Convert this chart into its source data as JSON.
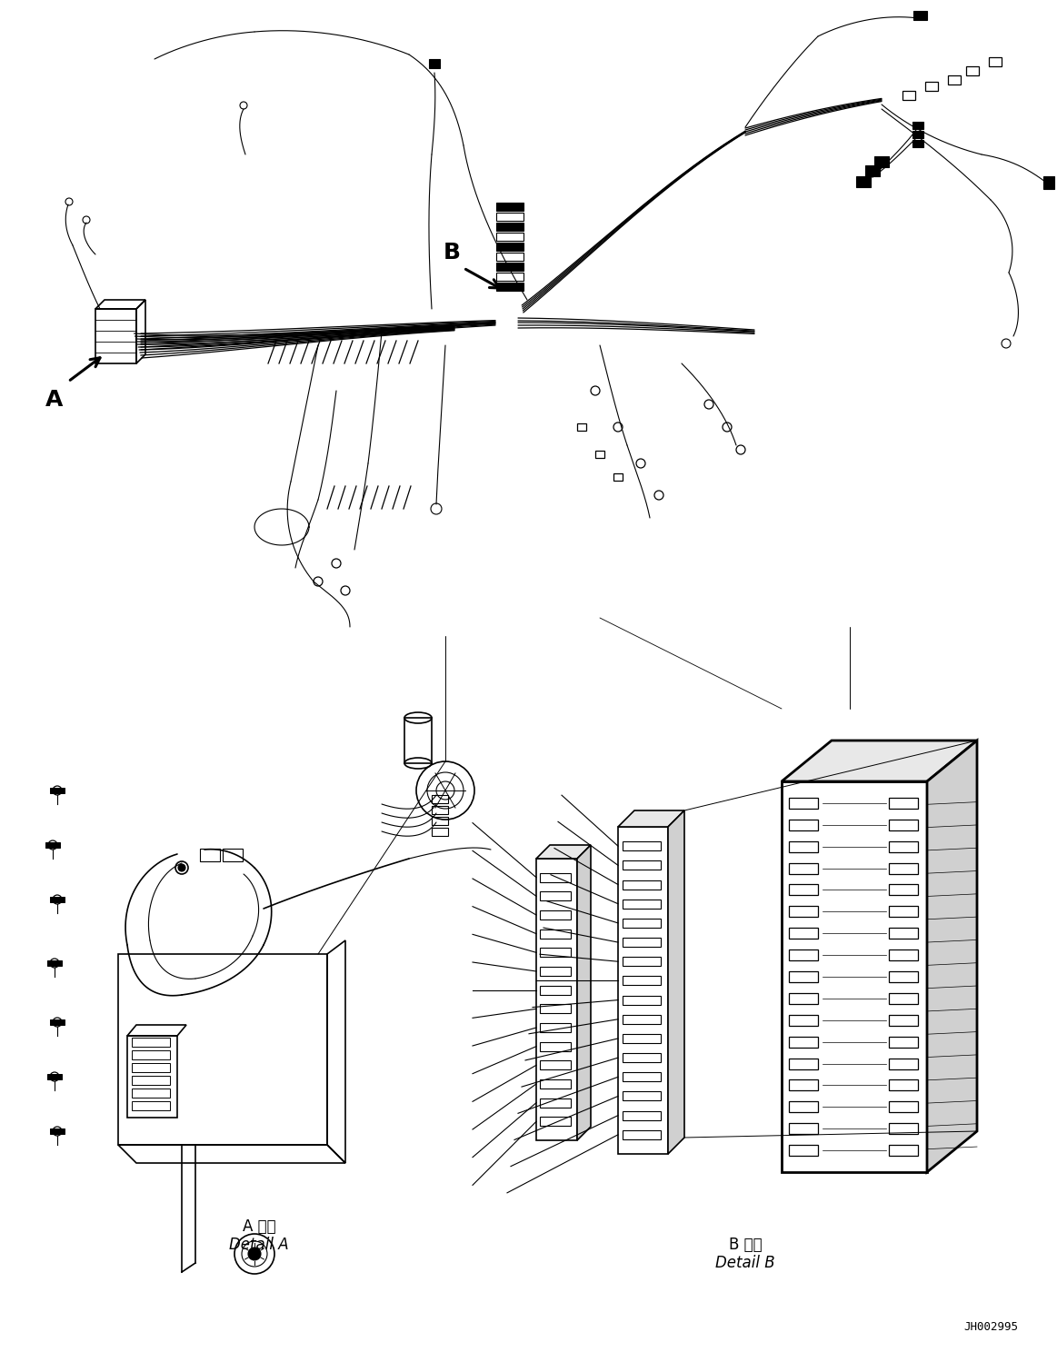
{
  "background_color": "#ffffff",
  "line_color": "#000000",
  "fig_width": 11.63,
  "fig_height": 14.88,
  "dpi": 100,
  "label_A": "A",
  "label_B": "B",
  "detail_A_line1": "A 詳細",
  "detail_A_line2": "Detail A",
  "detail_B_line1": "B 詳細",
  "detail_B_line2": "Detail B",
  "ref_number": "JH002995",
  "font_size_labels": 18,
  "font_size_detail": 11,
  "font_size_ref": 9
}
